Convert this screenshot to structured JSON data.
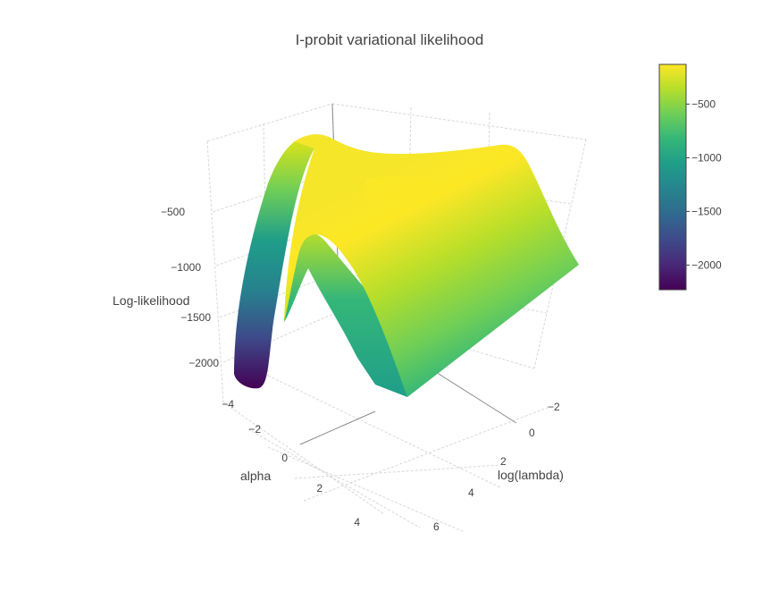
{
  "chart_data": {
    "type": "surface",
    "title": "I-probit variational likelihood",
    "colorscale": "viridis",
    "colorscale_stops": [
      "#440154",
      "#482878",
      "#3e4989",
      "#31688e",
      "#26828e",
      "#1f9e89",
      "#35b779",
      "#6ece58",
      "#b5de2b",
      "#fde725"
    ],
    "axes": {
      "x": {
        "label": "alpha",
        "range": [
          -4,
          5
        ],
        "ticks": [
          "−4",
          "−2",
          "0",
          "2",
          "4"
        ],
        "tick_values": [
          -4,
          -2,
          0,
          2,
          4
        ]
      },
      "y": {
        "label": "log(lambda)",
        "range": [
          -3,
          7
        ],
        "ticks": [
          "−2",
          "0",
          "2",
          "4",
          "6"
        ],
        "tick_values": [
          -2,
          0,
          2,
          4,
          6
        ]
      },
      "z": {
        "label": "Log-likelihood",
        "range": [
          -2300,
          -150
        ],
        "ticks": [
          "−500",
          "−1000",
          "−1500",
          "−2000"
        ],
        "tick_values": [
          -500,
          -1000,
          -1500,
          -2000
        ]
      }
    },
    "colorbar": {
      "range": [
        -2230,
        -130
      ],
      "ticks": [
        "−500",
        "−1000",
        "−1500",
        "−2000"
      ],
      "tick_values": [
        -500,
        -1000,
        -1500,
        -2000
      ]
    },
    "surface_samples": [
      {
        "alpha": -4,
        "log_lambda": -2,
        "value": -2200
      },
      {
        "alpha": 0,
        "log_lambda": -2,
        "value": -150
      },
      {
        "alpha": 0,
        "log_lambda": 0,
        "value": -200
      },
      {
        "alpha": 0,
        "log_lambda": 7,
        "value": -1000
      },
      {
        "alpha": 5,
        "log_lambda": 7,
        "value": -980
      }
    ]
  }
}
